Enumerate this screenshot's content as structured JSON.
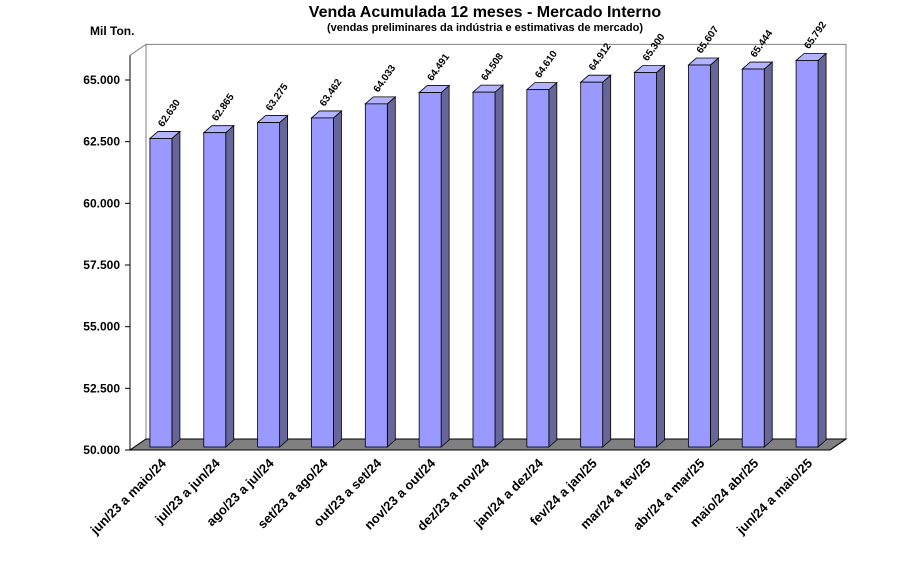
{
  "chart_data": {
    "type": "bar",
    "title": "Venda Acumulada 12 meses -  Mercado Interno",
    "subtitle": "(vendas preliminares da indústria e estimativas de mercado)",
    "ylabel": "Mil Ton.",
    "xlabel": "",
    "ylim": [
      50000,
      66000
    ],
    "yticks": [
      "50.000",
      "52.500",
      "55.000",
      "57.500",
      "60.000",
      "62.500",
      "65.000"
    ],
    "ytick_values": [
      50000,
      52500,
      55000,
      57500,
      60000,
      62500,
      65000
    ],
    "categories": [
      "jun/23 a maio/24",
      "jul/23 a jun/24",
      "ago/23 a jul/24",
      "set/23 a ago/24",
      "out/23 a set/24",
      "nov/23 a out/24",
      "dez/23 a nov/24",
      "jan/24 a dez/24",
      "fev/24 a jan/25",
      "mar/24 a fev/25",
      "abr/24 a mar/25",
      "maio/24 abr/25",
      "jun/24 a maio/25"
    ],
    "values": [
      62630,
      62865,
      63275,
      63462,
      64033,
      64491,
      64508,
      64610,
      64912,
      65300,
      65607,
      65444,
      65792
    ],
    "data_labels": [
      "62.630",
      "62.865",
      "63.275",
      "63.462",
      "64.033",
      "64.491",
      "64.508",
      "64.610",
      "64.912",
      "65.300",
      "65.607",
      "65.444",
      "65.792"
    ],
    "colors": {
      "bar_front": "#9999ff",
      "bar_side": "#666699",
      "bar_top": "#b3b3ff",
      "floor": "#808080",
      "floor_top": "#a0a0a0"
    },
    "grid": false,
    "legend": "none"
  }
}
